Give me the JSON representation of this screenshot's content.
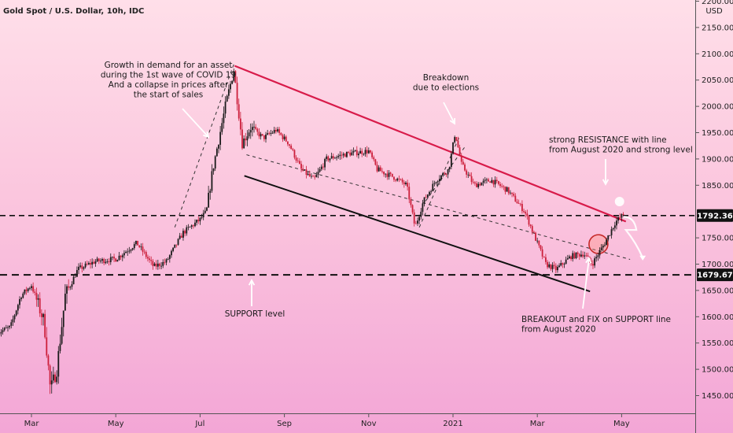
{
  "chart_data": {
    "type": "candlestick",
    "title": "Gold Spot / U.S. Dollar, 10h, IDC",
    "currency": "USD",
    "ylim": [
      1400,
      2200
    ],
    "y_ticks": [
      {
        "v": 2200,
        "label": "2200.00"
      },
      {
        "v": 2150,
        "label": "2150.00"
      },
      {
        "v": 2100,
        "label": "2100.00"
      },
      {
        "v": 2050,
        "label": "2050.00"
      },
      {
        "v": 2000,
        "label": "2000.00"
      },
      {
        "v": 1950,
        "label": "1950.00"
      },
      {
        "v": 1900,
        "label": "1900.00"
      },
      {
        "v": 1850,
        "label": "1850.00"
      },
      {
        "v": 1750,
        "label": "1750.00"
      },
      {
        "v": 1700,
        "label": "1700.00"
      },
      {
        "v": 1650,
        "label": "1650.00"
      },
      {
        "v": 1600,
        "label": "1600.00"
      },
      {
        "v": 1550,
        "label": "1550.00"
      },
      {
        "v": 1500,
        "label": "1500.00"
      },
      {
        "v": 1450,
        "label": "1450.00"
      }
    ],
    "x_ticks": [
      {
        "t": 0,
        "label": "Mar"
      },
      {
        "t": 2,
        "label": "May"
      },
      {
        "t": 4,
        "label": "Jul"
      },
      {
        "t": 6,
        "label": "Sep"
      },
      {
        "t": 8,
        "label": "Nov"
      },
      {
        "t": 10,
        "label": "2021"
      },
      {
        "t": 12,
        "label": "Mar"
      },
      {
        "t": 14,
        "label": "May"
      }
    ],
    "path": [
      [
        -0.8,
        1570
      ],
      [
        -0.5,
        1580
      ],
      [
        -0.25,
        1640
      ],
      [
        0,
        1660
      ],
      [
        0.3,
        1590
      ],
      [
        0.45,
        1460
      ],
      [
        0.6,
        1500
      ],
      [
        0.8,
        1640
      ],
      [
        1.1,
        1690
      ],
      [
        1.5,
        1705
      ],
      [
        2,
        1710
      ],
      [
        2.5,
        1740
      ],
      [
        2.9,
        1695
      ],
      [
        3.2,
        1705
      ],
      [
        3.6,
        1760
      ],
      [
        4,
        1785
      ],
      [
        4.15,
        1800
      ],
      [
        4.3,
        1880
      ],
      [
        4.6,
        2000
      ],
      [
        4.8,
        2070
      ],
      [
        5,
        1930
      ],
      [
        5.2,
        1960
      ],
      [
        5.5,
        1940
      ],
      [
        5.8,
        1955
      ],
      [
        6.1,
        1930
      ],
      [
        6.4,
        1880
      ],
      [
        6.7,
        1860
      ],
      [
        7,
        1900
      ],
      [
        7.5,
        1910
      ],
      [
        8,
        1915
      ],
      [
        8.2,
        1880
      ],
      [
        8.6,
        1865
      ],
      [
        8.9,
        1850
      ],
      [
        9.1,
        1770
      ],
      [
        9.3,
        1820
      ],
      [
        9.6,
        1860
      ],
      [
        9.9,
        1880
      ],
      [
        10.05,
        1950
      ],
      [
        10.2,
        1890
      ],
      [
        10.5,
        1850
      ],
      [
        10.9,
        1860
      ],
      [
        11.3,
        1840
      ],
      [
        11.7,
        1800
      ],
      [
        12,
        1740
      ],
      [
        12.2,
        1700
      ],
      [
        12.45,
        1690
      ],
      [
        12.8,
        1715
      ],
      [
        13.1,
        1720
      ],
      [
        13.3,
        1700
      ],
      [
        13.6,
        1740
      ],
      [
        13.85,
        1780
      ],
      [
        14.05,
        1795
      ]
    ],
    "support_level": {
      "value": 1679.67,
      "label": "1679.67"
    },
    "resistance_level": {
      "value": 1792.36,
      "label": "1792.36"
    },
    "annotations": [
      {
        "id": "growth",
        "lines": [
          "Growth in demand for an asset",
          "during the 1st wave of COVID 19",
          "And a collapse in prices after",
          "the start of sales"
        ]
      },
      {
        "id": "breakdown",
        "lines": [
          "Breakdown",
          "due to elections"
        ]
      },
      {
        "id": "resistance",
        "lines": [
          "strong RESISTANCE with line",
          "from August 2020 and strong level"
        ]
      },
      {
        "id": "support",
        "lines": [
          "SUPPORT level"
        ]
      },
      {
        "id": "breakout",
        "lines": [
          "BREAKOUT and FIX on SUPPORT line",
          "from August 2020"
        ]
      }
    ],
    "colors": {
      "up": "#1a1a1a",
      "down": "#cc1f3b",
      "resistance_line": "#d81b4a",
      "channel_line": "#111111",
      "price_label_bg": "#111111"
    }
  }
}
